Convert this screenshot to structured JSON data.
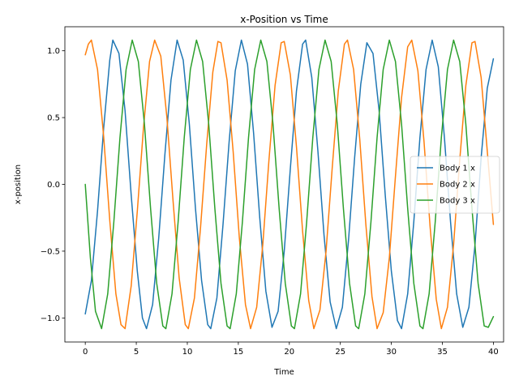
{
  "chart_data": {
    "type": "line",
    "title": "x-Position vs Time",
    "xlabel": "Time",
    "ylabel": "x-position",
    "xlim": [
      -2,
      41
    ],
    "ylim": [
      -1.18,
      1.18
    ],
    "xticks": [
      0,
      5,
      10,
      15,
      20,
      25,
      30,
      35,
      40
    ],
    "yticks": [
      -1.0,
      -0.5,
      0.0,
      0.5,
      1.0
    ],
    "ytick_labels": [
      "−1.0",
      "−0.5",
      "0.0",
      "0.5",
      "1.0"
    ],
    "xtick_labels": [
      "0",
      "5",
      "10",
      "15",
      "20",
      "25",
      "30",
      "35",
      "40"
    ],
    "grid": false,
    "legend": "center-right",
    "x_range": [
      0,
      40
    ],
    "series": [
      {
        "name": "Body 1 x",
        "color": "#1f77b4",
        "points": [
          [
            0.0,
            -0.97
          ],
          [
            0.6,
            -0.72
          ],
          [
            1.2,
            -0.2
          ],
          [
            1.8,
            0.42
          ],
          [
            2.4,
            0.93
          ],
          [
            2.7,
            1.08
          ],
          [
            3.3,
            0.98
          ],
          [
            3.9,
            0.55
          ],
          [
            4.5,
            -0.08
          ],
          [
            5.1,
            -0.65
          ],
          [
            5.6,
            -1.0
          ],
          [
            6.0,
            -1.08
          ],
          [
            6.6,
            -0.9
          ],
          [
            7.2,
            -0.4
          ],
          [
            7.8,
            0.22
          ],
          [
            8.4,
            0.78
          ],
          [
            9.0,
            1.08
          ],
          [
            9.6,
            0.93
          ],
          [
            10.2,
            0.45
          ],
          [
            10.8,
            -0.18
          ],
          [
            11.4,
            -0.72
          ],
          [
            12.0,
            -1.05
          ],
          [
            12.3,
            -1.08
          ],
          [
            12.9,
            -0.85
          ],
          [
            13.5,
            -0.3
          ],
          [
            14.1,
            0.32
          ],
          [
            14.7,
            0.85
          ],
          [
            15.3,
            1.08
          ],
          [
            15.9,
            0.9
          ],
          [
            16.5,
            0.38
          ],
          [
            17.1,
            -0.25
          ],
          [
            17.7,
            -0.8
          ],
          [
            18.3,
            -1.07
          ],
          [
            18.9,
            -0.95
          ],
          [
            19.5,
            -0.5
          ],
          [
            20.1,
            0.12
          ],
          [
            20.7,
            0.7
          ],
          [
            21.3,
            1.05
          ],
          [
            21.6,
            1.08
          ],
          [
            22.2,
            0.8
          ],
          [
            22.8,
            0.25
          ],
          [
            23.4,
            -0.38
          ],
          [
            24.0,
            -0.88
          ],
          [
            24.6,
            -1.08
          ],
          [
            25.2,
            -0.92
          ],
          [
            25.8,
            -0.42
          ],
          [
            26.4,
            0.2
          ],
          [
            27.0,
            0.75
          ],
          [
            27.6,
            1.06
          ],
          [
            28.2,
            0.98
          ],
          [
            28.8,
            0.55
          ],
          [
            29.4,
            -0.08
          ],
          [
            30.0,
            -0.65
          ],
          [
            30.6,
            -1.02
          ],
          [
            31.0,
            -1.08
          ],
          [
            31.6,
            -0.82
          ],
          [
            32.2,
            -0.28
          ],
          [
            32.8,
            0.35
          ],
          [
            33.4,
            0.86
          ],
          [
            34.0,
            1.08
          ],
          [
            34.6,
            0.88
          ],
          [
            35.2,
            0.35
          ],
          [
            35.8,
            -0.28
          ],
          [
            36.4,
            -0.82
          ],
          [
            37.0,
            -1.07
          ],
          [
            37.6,
            -0.92
          ],
          [
            38.2,
            -0.45
          ],
          [
            38.8,
            0.2
          ],
          [
            39.4,
            0.72
          ],
          [
            40.0,
            0.94
          ]
        ]
      },
      {
        "name": "Body 2 x",
        "color": "#ff7f0e",
        "points": [
          [
            0.0,
            0.97
          ],
          [
            0.3,
            1.05
          ],
          [
            0.6,
            1.08
          ],
          [
            1.2,
            0.86
          ],
          [
            1.8,
            0.36
          ],
          [
            2.4,
            -0.27
          ],
          [
            3.0,
            -0.82
          ],
          [
            3.5,
            -1.05
          ],
          [
            3.9,
            -1.08
          ],
          [
            4.5,
            -0.76
          ],
          [
            5.1,
            -0.2
          ],
          [
            5.7,
            0.42
          ],
          [
            6.3,
            0.92
          ],
          [
            6.8,
            1.08
          ],
          [
            7.4,
            0.96
          ],
          [
            8.0,
            0.5
          ],
          [
            8.6,
            -0.12
          ],
          [
            9.2,
            -0.7
          ],
          [
            9.8,
            -1.05
          ],
          [
            10.1,
            -1.08
          ],
          [
            10.7,
            -0.85
          ],
          [
            11.3,
            -0.32
          ],
          [
            11.9,
            0.3
          ],
          [
            12.5,
            0.84
          ],
          [
            13.0,
            1.07
          ],
          [
            13.3,
            1.06
          ],
          [
            13.9,
            0.78
          ],
          [
            14.5,
            0.24
          ],
          [
            15.1,
            -0.4
          ],
          [
            15.7,
            -0.9
          ],
          [
            16.2,
            -1.08
          ],
          [
            16.8,
            -0.92
          ],
          [
            17.4,
            -0.45
          ],
          [
            18.0,
            0.18
          ],
          [
            18.6,
            0.74
          ],
          [
            19.2,
            1.06
          ],
          [
            19.5,
            1.07
          ],
          [
            20.1,
            0.82
          ],
          [
            20.7,
            0.28
          ],
          [
            21.3,
            -0.35
          ],
          [
            21.9,
            -0.87
          ],
          [
            22.4,
            -1.08
          ],
          [
            23.0,
            -0.94
          ],
          [
            23.6,
            -0.5
          ],
          [
            24.2,
            0.12
          ],
          [
            24.8,
            0.7
          ],
          [
            25.4,
            1.05
          ],
          [
            25.7,
            1.08
          ],
          [
            26.3,
            0.86
          ],
          [
            26.9,
            0.34
          ],
          [
            27.5,
            -0.3
          ],
          [
            28.1,
            -0.84
          ],
          [
            28.6,
            -1.08
          ],
          [
            29.2,
            -0.96
          ],
          [
            29.8,
            -0.55
          ],
          [
            30.4,
            0.06
          ],
          [
            31.0,
            0.65
          ],
          [
            31.6,
            1.03
          ],
          [
            32.0,
            1.08
          ],
          [
            32.6,
            0.85
          ],
          [
            33.2,
            0.32
          ],
          [
            33.8,
            -0.32
          ],
          [
            34.4,
            -0.86
          ],
          [
            34.9,
            -1.08
          ],
          [
            35.5,
            -0.92
          ],
          [
            36.1,
            -0.45
          ],
          [
            36.7,
            0.18
          ],
          [
            37.3,
            0.74
          ],
          [
            37.9,
            1.06
          ],
          [
            38.2,
            1.07
          ],
          [
            38.8,
            0.8
          ],
          [
            39.4,
            0.25
          ],
          [
            40.0,
            -0.3
          ]
        ]
      },
      {
        "name": "Body 3 x",
        "color": "#2ca02c",
        "points": [
          [
            0.0,
            0.0
          ],
          [
            0.5,
            -0.55
          ],
          [
            1.0,
            -0.95
          ],
          [
            1.6,
            -1.08
          ],
          [
            2.2,
            -0.82
          ],
          [
            2.8,
            -0.28
          ],
          [
            3.4,
            0.35
          ],
          [
            4.0,
            0.86
          ],
          [
            4.6,
            1.08
          ],
          [
            5.2,
            0.92
          ],
          [
            5.8,
            0.45
          ],
          [
            6.4,
            -0.18
          ],
          [
            7.0,
            -0.74
          ],
          [
            7.6,
            -1.06
          ],
          [
            7.9,
            -1.08
          ],
          [
            8.5,
            -0.82
          ],
          [
            9.1,
            -0.28
          ],
          [
            9.7,
            0.35
          ],
          [
            10.3,
            0.86
          ],
          [
            10.9,
            1.08
          ],
          [
            11.5,
            0.92
          ],
          [
            12.1,
            0.45
          ],
          [
            12.7,
            -0.18
          ],
          [
            13.3,
            -0.74
          ],
          [
            13.9,
            -1.06
          ],
          [
            14.2,
            -1.08
          ],
          [
            14.8,
            -0.82
          ],
          [
            15.4,
            -0.28
          ],
          [
            16.0,
            0.35
          ],
          [
            16.6,
            0.86
          ],
          [
            17.2,
            1.08
          ],
          [
            17.8,
            0.92
          ],
          [
            18.4,
            0.45
          ],
          [
            19.0,
            -0.18
          ],
          [
            19.6,
            -0.74
          ],
          [
            20.2,
            -1.06
          ],
          [
            20.5,
            -1.08
          ],
          [
            21.1,
            -0.82
          ],
          [
            21.7,
            -0.28
          ],
          [
            22.3,
            0.35
          ],
          [
            22.9,
            0.86
          ],
          [
            23.5,
            1.08
          ],
          [
            24.1,
            0.92
          ],
          [
            24.7,
            0.45
          ],
          [
            25.3,
            -0.18
          ],
          [
            25.9,
            -0.74
          ],
          [
            26.5,
            -1.06
          ],
          [
            26.8,
            -1.08
          ],
          [
            27.4,
            -0.82
          ],
          [
            28.0,
            -0.28
          ],
          [
            28.6,
            0.35
          ],
          [
            29.2,
            0.86
          ],
          [
            29.8,
            1.08
          ],
          [
            30.4,
            0.92
          ],
          [
            31.0,
            0.45
          ],
          [
            31.6,
            -0.18
          ],
          [
            32.2,
            -0.74
          ],
          [
            32.8,
            -1.06
          ],
          [
            33.1,
            -1.08
          ],
          [
            33.7,
            -0.82
          ],
          [
            34.3,
            -0.28
          ],
          [
            34.9,
            0.35
          ],
          [
            35.5,
            0.86
          ],
          [
            36.1,
            1.08
          ],
          [
            36.7,
            0.92
          ],
          [
            37.3,
            0.45
          ],
          [
            37.9,
            -0.18
          ],
          [
            38.5,
            -0.74
          ],
          [
            39.1,
            -1.06
          ],
          [
            39.5,
            -1.07
          ],
          [
            40.0,
            -0.99
          ]
        ]
      }
    ]
  }
}
